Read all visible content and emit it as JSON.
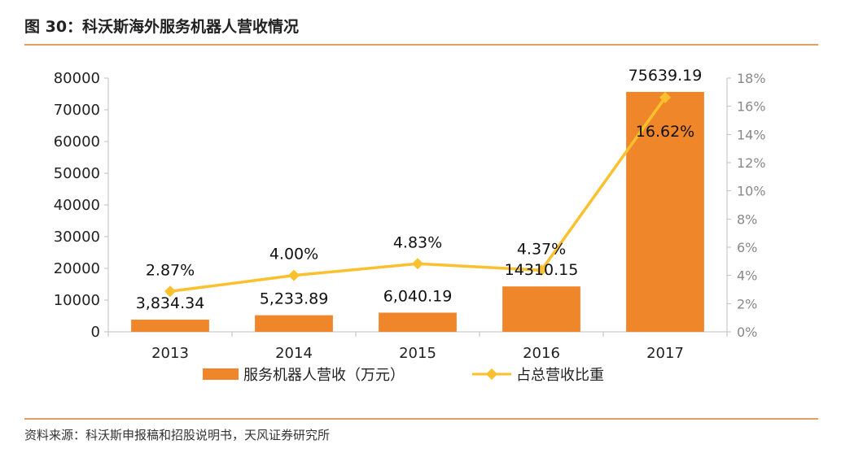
{
  "header": {
    "title": "图 30：科沃斯海外服务机器人营收情况"
  },
  "footer": {
    "source": "资料来源：科沃斯申报稿和招股说明书，天风证券研究所"
  },
  "colors": {
    "bar": "#f0862a",
    "line": "#fbc02d",
    "rule": "#e0a060"
  },
  "chart_data": {
    "type": "bar",
    "categories": [
      "2013",
      "2014",
      "2015",
      "2016",
      "2017"
    ],
    "series": [
      {
        "name": "服务机器人营收（万元）",
        "type": "bar",
        "axis": "left",
        "values": [
          3834.34,
          5233.89,
          6040.19,
          14310.15,
          75639.19
        ],
        "labels": [
          "3,834.34",
          "5,233.89",
          "6,040.19",
          "14310.15",
          "75639.19"
        ]
      },
      {
        "name": "占总营收比重",
        "type": "line",
        "axis": "right",
        "values": [
          2.87,
          4.0,
          4.83,
          4.37,
          16.62
        ],
        "labels": [
          "2.87%",
          "4.00%",
          "4.83%",
          "4.37%",
          "16.62%"
        ]
      }
    ],
    "y_left": {
      "range": [
        0,
        80000
      ],
      "ticks": [
        "0",
        "10000",
        "20000",
        "30000",
        "40000",
        "50000",
        "60000",
        "70000",
        "80000"
      ]
    },
    "y_right": {
      "range": [
        0,
        18
      ],
      "ticks": [
        "0%",
        "2%",
        "4%",
        "6%",
        "8%",
        "10%",
        "12%",
        "14%",
        "16%",
        "18%"
      ]
    },
    "grid": false,
    "legend": "bottom"
  }
}
